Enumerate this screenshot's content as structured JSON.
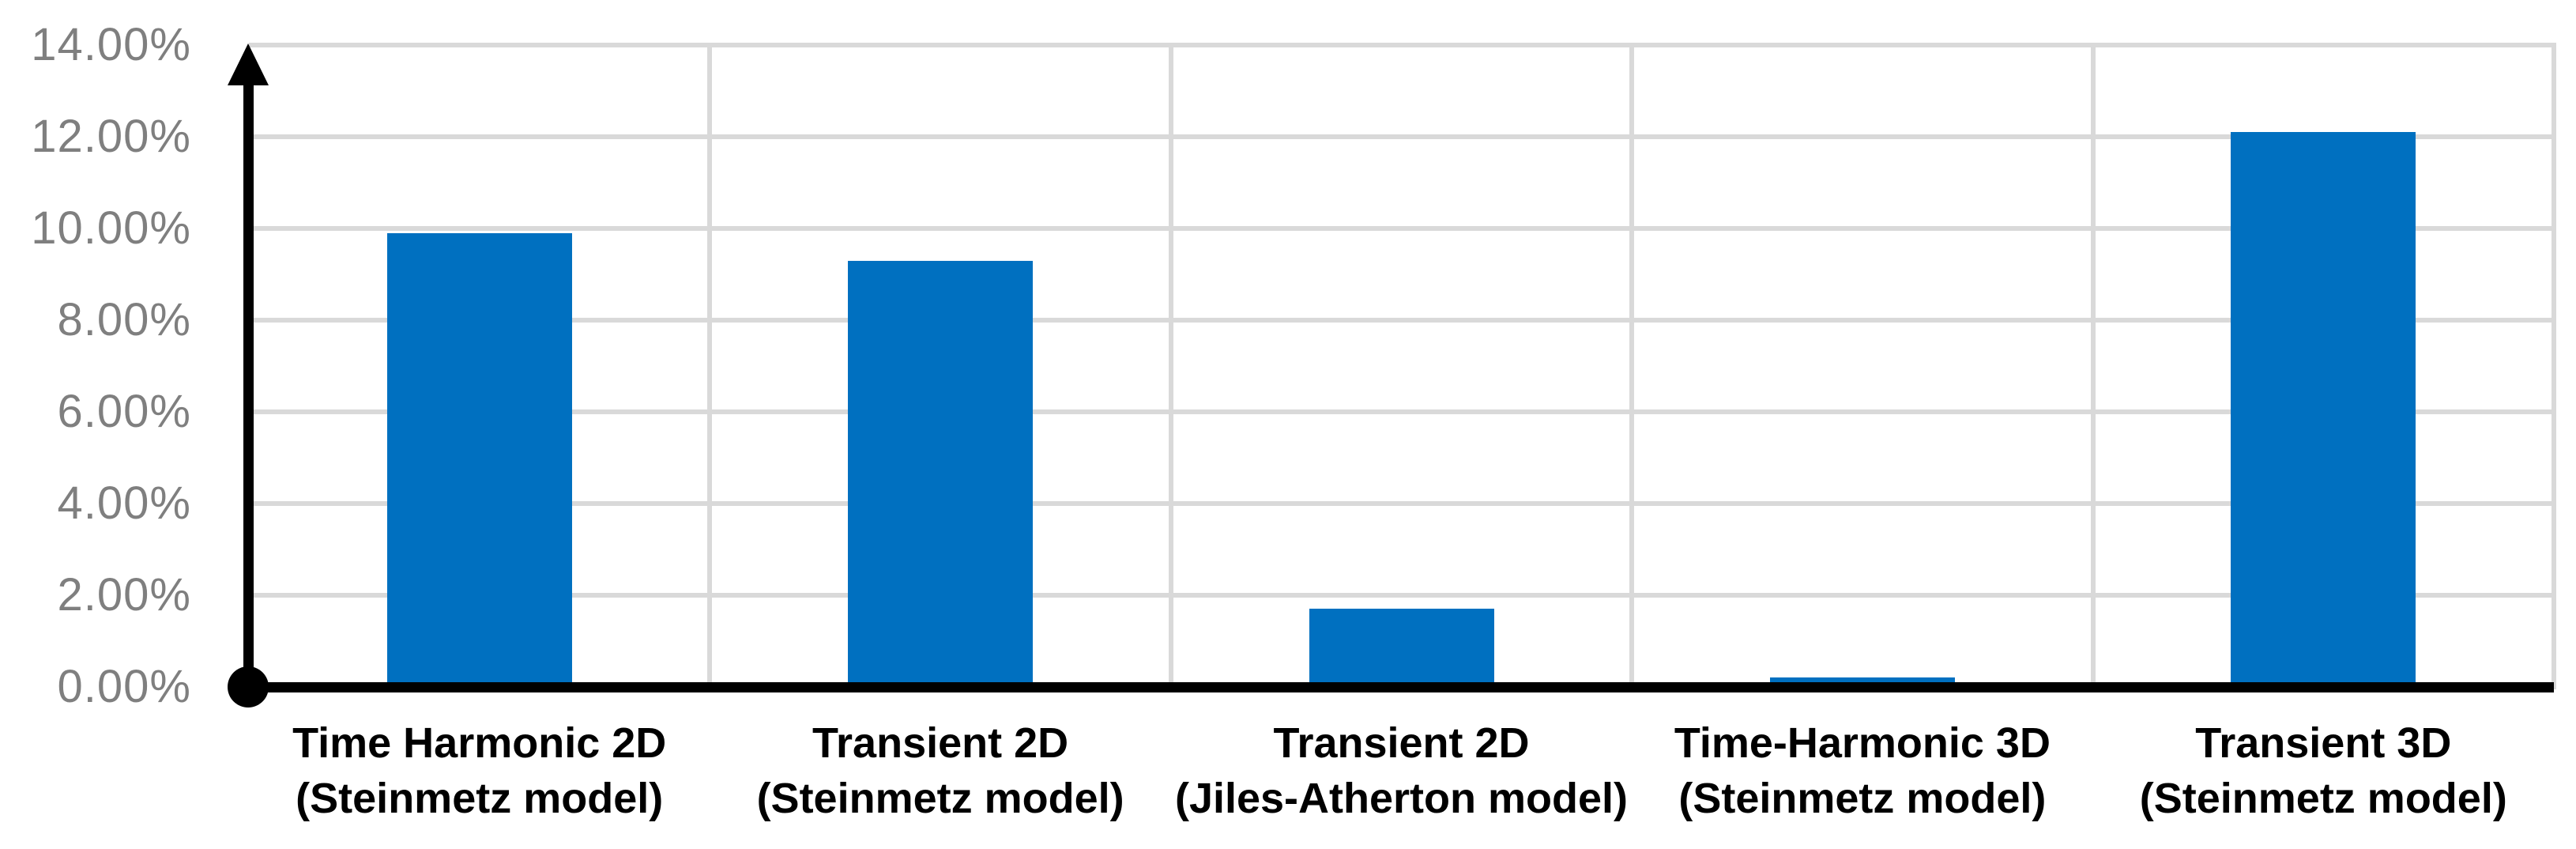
{
  "chart_data": {
    "type": "bar",
    "title": "",
    "xlabel": "",
    "ylabel": "",
    "categories": [
      [
        "Time Harmonic 2D",
        "(Steinmetz model)"
      ],
      [
        "Transient 2D",
        "(Steinmetz model)"
      ],
      [
        "Transient 2D",
        "(Jiles-Atherton model)"
      ],
      [
        "Time-Harmonic 3D",
        "(Steinmetz model)"
      ],
      [
        "Transient 3D",
        "(Steinmetz model)"
      ]
    ],
    "values": [
      9.9,
      9.3,
      1.7,
      0.2,
      12.1
    ],
    "value_unit": "%",
    "ylim": [
      0,
      14
    ],
    "ytick_step": 2,
    "ytick_labels": [
      "0.00%",
      "2.00%",
      "4.00%",
      "6.00%",
      "8.00%",
      "10.00%",
      "12.00%",
      "14.00%"
    ],
    "grid": true,
    "legend_position": "none",
    "colors": {
      "bar": "#0070C0",
      "gridline": "#D9D9D9",
      "axis": "#000000",
      "ytick_text": "#7F7F7F",
      "category_text": "#000000",
      "background": "#FFFFFF"
    }
  }
}
